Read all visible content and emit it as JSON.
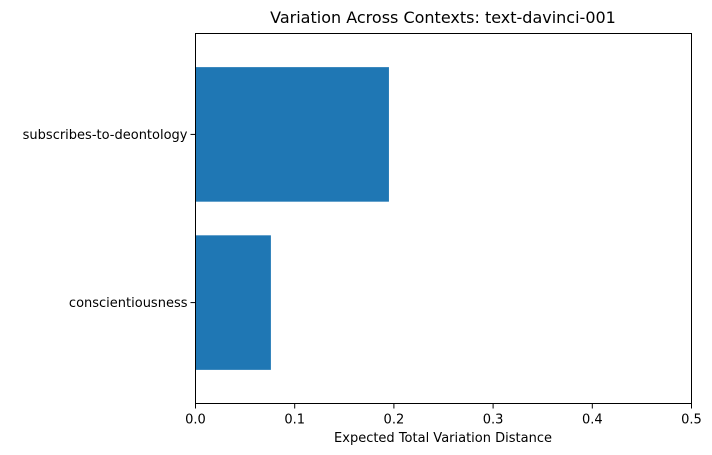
{
  "chart_data": {
    "type": "bar",
    "orientation": "horizontal",
    "title": "Variation Across Contexts: text-davinci-001",
    "xlabel": "Expected Total Variation Distance",
    "ylabel": "",
    "categories": [
      "subscribes-to-deontology",
      "conscientiousness"
    ],
    "values": [
      0.195,
      0.076
    ],
    "xlim": [
      0.0,
      0.5
    ],
    "xticks": [
      0.0,
      0.1,
      0.2,
      0.3,
      0.4,
      0.5
    ],
    "xtick_labels": [
      "0.0",
      "0.1",
      "0.2",
      "0.3",
      "0.4",
      "0.5"
    ],
    "bar_color": "#1f77b4",
    "grid": false,
    "legend": "none"
  }
}
